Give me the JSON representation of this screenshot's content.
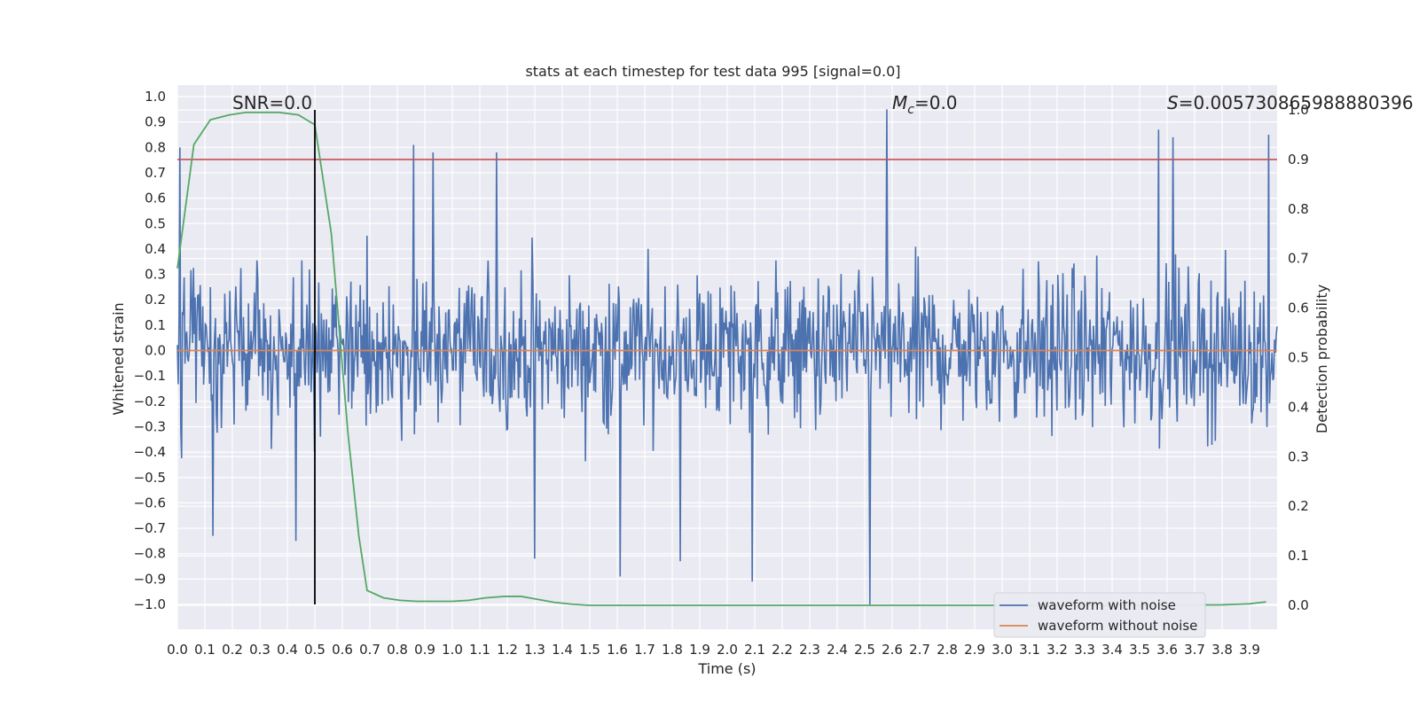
{
  "chart_data": {
    "type": "line",
    "title": "stats at each timestep for test data 995 [signal=0.0]",
    "xlabel": "Time (s)",
    "ylabel": "Whitened strain",
    "y2label": "Detection probability",
    "xlim": [
      0.0,
      4.0
    ],
    "ylim": [
      -1.1,
      1.05
    ],
    "y2lim": [
      -0.05,
      1.0
    ],
    "xticks": [
      "0.0",
      "0.1",
      "0.2",
      "0.3",
      "0.4",
      "0.5",
      "0.6",
      "0.7",
      "0.8",
      "0.9",
      "1.0",
      "1.1",
      "1.2",
      "1.3",
      "1.4",
      "1.5",
      "1.6",
      "1.7",
      "1.8",
      "1.9",
      "2.0",
      "2.1",
      "2.2",
      "2.3",
      "2.4",
      "2.5",
      "2.6",
      "2.7",
      "2.8",
      "2.9",
      "3.0",
      "3.1",
      "3.2",
      "3.3",
      "3.4",
      "3.5",
      "3.6",
      "3.7",
      "3.8",
      "3.9"
    ],
    "yticks": [
      "1.0",
      "0.9",
      "0.8",
      "0.7",
      "0.6",
      "0.5",
      "0.4",
      "0.3",
      "0.2",
      "0.1",
      "0.0",
      "−0.1",
      "−0.2",
      "−0.3",
      "−0.4",
      "−0.5",
      "−0.6",
      "−0.7",
      "−0.8",
      "−0.9",
      "−1.0"
    ],
    "y2ticks": [
      "1.0",
      "0.9",
      "0.8",
      "0.7",
      "0.6",
      "0.5",
      "0.4",
      "0.3",
      "0.2",
      "0.1",
      "0.0"
    ],
    "grid": true,
    "legend_placement": "lower-right",
    "annotations": {
      "snr": "SNR=0.0",
      "mc_symbol": "M",
      "mc_subscript": "c",
      "mc_value": "=0.0",
      "s_symbol": "S",
      "s_value": "=0.005730865988880396"
    },
    "series": [
      {
        "name": "waveform with noise",
        "color": "#4c72b0",
        "axis": "left",
        "description_values": {
          "x_start": 0.0,
          "x_end": 4.0,
          "approx_range": [
            -1.0,
            0.95
          ]
        },
        "notable_peaks": [
          [
            0.01,
            0.8
          ],
          [
            0.86,
            0.81
          ],
          [
            0.93,
            0.78
          ],
          [
            1.16,
            0.78
          ],
          [
            2.58,
            0.95
          ],
          [
            3.57,
            0.87
          ],
          [
            3.62,
            0.84
          ],
          [
            3.97,
            0.85
          ],
          [
            2.52,
            -1.0
          ],
          [
            1.61,
            -0.89
          ],
          [
            2.09,
            -0.91
          ],
          [
            1.83,
            -0.83
          ],
          [
            1.3,
            -0.82
          ],
          [
            0.43,
            -0.75
          ],
          [
            0.13,
            -0.73
          ]
        ]
      },
      {
        "name": "waveform without noise",
        "color": "#dd8452",
        "axis": "left",
        "x": [
          0.0,
          4.0
        ],
        "y": [
          0.0,
          0.0
        ]
      },
      {
        "name": "",
        "color": "#55a868",
        "axis": "right",
        "x": [
          0.0,
          0.06,
          0.12,
          0.19,
          0.25,
          0.31,
          0.37,
          0.44,
          0.5,
          0.56,
          0.59,
          0.62,
          0.66,
          0.69,
          0.75,
          0.81,
          0.87,
          0.94,
          1.0,
          1.06,
          1.12,
          1.19,
          1.25,
          1.31,
          1.37,
          1.44,
          1.5,
          1.56,
          1.62,
          2.0,
          2.5,
          3.0,
          3.5,
          3.8,
          3.9,
          3.96
        ],
        "y": [
          0.68,
          0.93,
          0.98,
          0.99,
          0.995,
          0.995,
          0.995,
          0.99,
          0.97,
          0.75,
          0.55,
          0.35,
          0.14,
          0.03,
          0.015,
          0.01,
          0.008,
          0.008,
          0.008,
          0.01,
          0.015,
          0.018,
          0.018,
          0.012,
          0.006,
          0.002,
          0.0,
          0.0,
          0.0,
          0.0,
          0.0,
          0.0,
          0.0,
          0.001,
          0.003,
          0.007
        ]
      }
    ],
    "threshold_line": {
      "color": "#c44e52",
      "axis": "right",
      "value": 0.9
    },
    "vertical_marker": {
      "color": "#000000",
      "x": 0.5
    }
  }
}
